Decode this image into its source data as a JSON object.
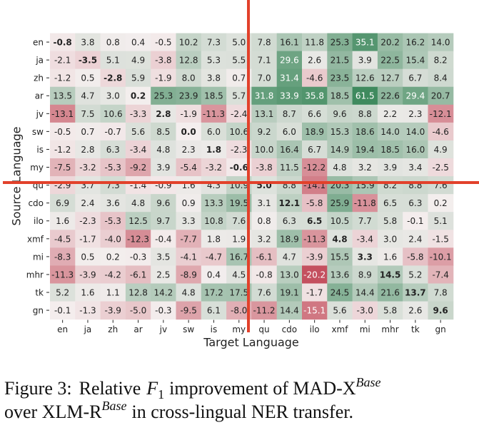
{
  "chart_data": {
    "type": "heatmap",
    "x_categories": [
      "en",
      "ja",
      "zh",
      "ar",
      "jv",
      "sw",
      "is",
      "my",
      "qu",
      "cdo",
      "ilo",
      "xmf",
      "mi",
      "mhr",
      "tk",
      "gn"
    ],
    "y_categories": [
      "en",
      "ja",
      "zh",
      "ar",
      "jv",
      "sw",
      "is",
      "my",
      "qu",
      "cdo",
      "ilo",
      "xmf",
      "mi",
      "mhr",
      "tk",
      "gn"
    ],
    "xlabel": "Target Language",
    "ylabel": "Source Language",
    "values": [
      [
        -0.8,
        3.8,
        0.8,
        0.4,
        -0.5,
        10.2,
        7.3,
        5.0,
        7.8,
        16.1,
        11.8,
        25.3,
        35.1,
        20.2,
        16.2,
        14.0
      ],
      [
        -2.1,
        -3.5,
        5.1,
        4.9,
        -3.8,
        12.8,
        5.3,
        5.5,
        7.1,
        29.6,
        2.6,
        21.5,
        3.9,
        22.5,
        15.4,
        8.2
      ],
      [
        -1.2,
        0.5,
        -2.8,
        5.9,
        -1.9,
        8.0,
        3.8,
        0.7,
        7.0,
        31.4,
        -4.6,
        23.5,
        12.6,
        12.7,
        6.7,
        8.4
      ],
      [
        13.5,
        4.7,
        3.0,
        0.2,
        25.3,
        23.9,
        18.5,
        5.7,
        31.8,
        33.9,
        35.8,
        18.5,
        61.5,
        22.6,
        29.4,
        20.7
      ],
      [
        -13.1,
        7.5,
        10.6,
        -3.3,
        2.8,
        -1.9,
        -11.3,
        -2.4,
        13.1,
        8.7,
        6.6,
        9.6,
        8.8,
        2.2,
        2.3,
        -12.1
      ],
      [
        -0.5,
        0.7,
        -0.7,
        5.6,
        8.5,
        0.0,
        6.0,
        10.6,
        9.2,
        6.0,
        18.9,
        15.3,
        18.6,
        14.0,
        14.0,
        -4.6
      ],
      [
        -1.2,
        2.8,
        6.3,
        -3.4,
        4.8,
        2.3,
        1.8,
        -2.3,
        10.0,
        16.4,
        6.7,
        14.9,
        19.4,
        18.5,
        16.0,
        4.9
      ],
      [
        -7.5,
        -3.2,
        -5.3,
        -9.2,
        3.9,
        -5.4,
        -3.2,
        -0.6,
        -3.8,
        11.5,
        -12.2,
        4.8,
        3.2,
        3.9,
        3.4,
        -2.5
      ],
      [
        -2.9,
        3.7,
        7.3,
        -1.4,
        -0.9,
        1.6,
        4.3,
        10.9,
        5.0,
        8.8,
        -14.1,
        20.3,
        15.9,
        8.2,
        8.8,
        7.6
      ],
      [
        6.9,
        2.4,
        3.6,
        4.8,
        9.6,
        0.9,
        13.3,
        19.5,
        3.1,
        12.1,
        -5.8,
        25.9,
        -11.8,
        6.5,
        6.3,
        0.2
      ],
      [
        1.6,
        -2.3,
        -5.3,
        12.5,
        9.7,
        3.3,
        10.8,
        7.6,
        0.8,
        6.3,
        6.5,
        10.5,
        7.7,
        5.8,
        -0.1,
        5.1
      ],
      [
        -4.5,
        -1.7,
        -4.0,
        -12.3,
        -0.4,
        -7.7,
        1.8,
        1.9,
        3.2,
        18.9,
        -11.3,
        4.8,
        -3.4,
        3.0,
        2.4,
        -1.5
      ],
      [
        -8.3,
        0.5,
        0.2,
        -0.3,
        3.5,
        -4.1,
        -4.7,
        16.7,
        -6.1,
        4.7,
        -3.9,
        15.5,
        3.3,
        1.6,
        -5.8,
        -10.1
      ],
      [
        -11.3,
        -3.9,
        -4.2,
        -6.1,
        2.5,
        -8.9,
        0.4,
        4.5,
        -0.8,
        13.0,
        -20.2,
        13.6,
        8.9,
        14.5,
        5.2,
        -7.4
      ],
      [
        5.2,
        1.6,
        1.1,
        12.8,
        14.2,
        4.8,
        17.2,
        17.5,
        7.6,
        19.1,
        -1.7,
        24.5,
        14.4,
        21.6,
        13.7,
        7.8
      ],
      [
        -0.1,
        -1.3,
        -3.9,
        -5.0,
        -0.3,
        -9.5,
        6.1,
        -8.0,
        -11.2,
        14.4,
        -15.1,
        5.6,
        -3.0,
        5.8,
        2.6,
        9.6
      ]
    ],
    "value_labels": [
      [
        "-0.8",
        "3.8",
        "0.8",
        "0.4",
        "-0.5",
        "10.2",
        "7.3",
        "5.0",
        "7.8",
        "16.1",
        "11.8",
        "25.3",
        "35.1",
        "20.2",
        "16.2",
        "14.0"
      ],
      [
        "-2.1",
        "-3.5",
        "5.1",
        "4.9",
        "-3.8",
        "12.8",
        "5.3",
        "5.5",
        "7.1",
        "29.6",
        "2.6",
        "21.5",
        "3.9",
        "22.5",
        "15.4",
        "8.2"
      ],
      [
        "-1.2",
        "0.5",
        "-2.8",
        "5.9",
        "-1.9",
        "8.0",
        "3.8",
        "0.7",
        "7.0",
        "31.4",
        "-4.6",
        "23.5",
        "12.6",
        "12.7",
        "6.7",
        "8.4"
      ],
      [
        "13.5",
        "4.7",
        "3.0",
        "0.2",
        "25.3",
        "23.9",
        "18.5",
        "5.7",
        "31.8",
        "33.9",
        "35.8",
        "18.5",
        "61.5",
        "22.6",
        "29.4",
        "20.7"
      ],
      [
        "-13.1",
        "7.5",
        "10.6",
        "-3.3",
        "2.8",
        "-1.9",
        "-11.3",
        "-2.4",
        "13.1",
        "8.7",
        "6.6",
        "9.6",
        "8.8",
        "2.2",
        "2.3",
        "-12.1"
      ],
      [
        "-0.5",
        "0.7",
        "-0.7",
        "5.6",
        "8.5",
        "0.0",
        "6.0",
        "10.6",
        "9.2",
        "6.0",
        "18.9",
        "15.3",
        "18.6",
        "14.0",
        "14.0",
        "-4.6"
      ],
      [
        "-1.2",
        "2.8",
        "6.3",
        "-3.4",
        "4.8",
        "2.3",
        "1.8",
        "-2.3",
        "10.0",
        "16.4",
        "6.7",
        "14.9",
        "19.4",
        "18.5",
        "16.0",
        "4.9"
      ],
      [
        "-7.5",
        "-3.2",
        "-5.3",
        "-9.2",
        "3.9",
        "-5.4",
        "-3.2",
        "-0.6",
        "-3.8",
        "11.5",
        "-12.2",
        "4.8",
        "3.2",
        "3.9",
        "3.4",
        "-2.5"
      ],
      [
        "-2.9",
        "3.7",
        "7.3",
        "-1.4",
        "-0.9",
        "1.6",
        "4.3",
        "10.9",
        "5.0",
        "8.8",
        "-14.1",
        "20.3",
        "15.9",
        "8.2",
        "8.8",
        "7.6"
      ],
      [
        "6.9",
        "2.4",
        "3.6",
        "4.8",
        "9.6",
        "0.9",
        "13.3",
        "19.5",
        "3.1",
        "12.1",
        "-5.8",
        "25.9",
        "-11.8",
        "6.5",
        "6.3",
        "0.2"
      ],
      [
        "1.6",
        "-2.3",
        "-5.3",
        "12.5",
        "9.7",
        "3.3",
        "10.8",
        "7.6",
        "0.8",
        "6.3",
        "6.5",
        "10.5",
        "7.7",
        "5.8",
        "-0.1",
        "5.1"
      ],
      [
        "-4.5",
        "-1.7",
        "-4.0",
        "-12.3",
        "-0.4",
        "-7.7",
        "1.8",
        "1.9",
        "3.2",
        "18.9",
        "-11.3",
        "4.8",
        "-3.4",
        "3.0",
        "2.4",
        "-1.5"
      ],
      [
        "-8.3",
        "0.5",
        "0.2",
        "-0.3",
        "3.5",
        "-4.1",
        "-4.7",
        "16.7",
        "-6.1",
        "4.7",
        "-3.9",
        "15.5",
        "3.3",
        "1.6",
        "-5.8",
        "-10.1"
      ],
      [
        "-11.3",
        "-3.9",
        "-4.2",
        "-6.1",
        "2.5",
        "-8.9",
        "0.4",
        "4.5",
        "-0.8",
        "13.0",
        "-20.2",
        "13.6",
        "8.9",
        "14.5",
        "5.2",
        "-7.4"
      ],
      [
        "5.2",
        "1.6",
        "1.1",
        "12.8",
        "14.2",
        "4.8",
        "17.2",
        "17.5",
        "7.6",
        "19.1",
        "-1.7",
        "24.5",
        "14.4",
        "21.6",
        "13.7",
        "7.8"
      ],
      [
        "-0.1",
        "-1.3",
        "-3.9",
        "-5.0",
        "-0.3",
        "-9.5",
        "6.1",
        "-8.0",
        "-11.2",
        "14.4",
        "-15.1",
        "5.6",
        "-3.0",
        "5.8",
        "2.6",
        "9.6"
      ]
    ],
    "vlim": [
      -20,
      40
    ],
    "colors": {
      "low": "#c4505f",
      "mid": "#f4eeee",
      "high": "#3f8a5e"
    },
    "caption": {
      "label": "Figure 3:",
      "text1": "Relative",
      "f": "F",
      "f_sub": "1",
      "text2": "improvement of MAD-X",
      "sup1": "Base",
      "text3": "over XLM-R",
      "sup2": "Base",
      "text4": "in cross-lingual NER transfer."
    }
  }
}
